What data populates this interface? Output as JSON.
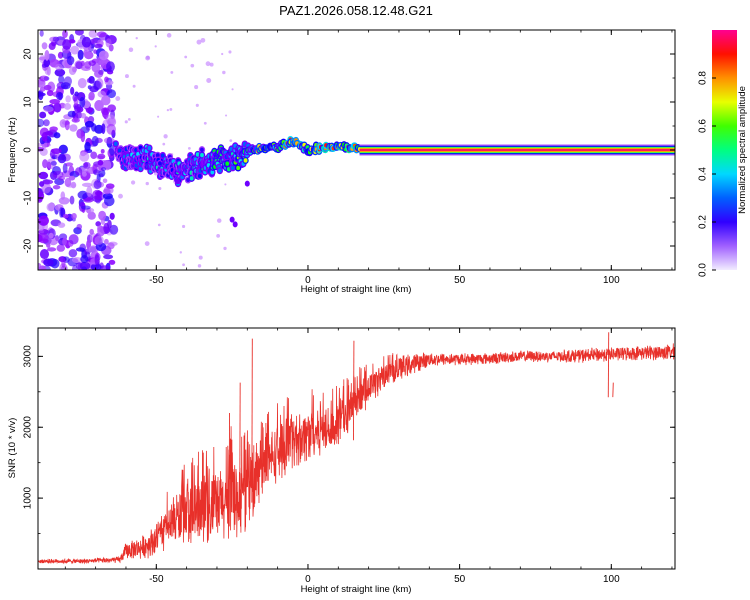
{
  "title": "PAZ1.2026.058.12.48.G21",
  "chart_data": [
    {
      "type": "heatmap",
      "xlabel": "Height of straight line (km)",
      "ylabel": "Frequency (Hz)",
      "xlim": [
        -89,
        121
      ],
      "ylim": [
        -25,
        25
      ],
      "xticks": [
        -50,
        0,
        50,
        100
      ],
      "yticks": [
        -20,
        -10,
        0,
        10,
        20
      ],
      "colorbar": {
        "label": "Normalized spectral amplitude",
        "range": [
          0,
          1
        ],
        "ticks": [
          0.0,
          0.2,
          0.4,
          0.6,
          0.8
        ],
        "colors": [
          "#f0e8ff",
          "#8a00ff",
          "#0000ff",
          "#00e0ff",
          "#00ff00",
          "#ffff00",
          "#ff8000",
          "#ff0000",
          "#ff0080"
        ]
      },
      "ridge": {
        "x": [
          -63,
          -58,
          -52,
          -47,
          -43,
          -40,
          -36,
          -32,
          -28,
          -24,
          -20,
          -16,
          -12,
          -8,
          -5,
          -2,
          0,
          3,
          6,
          10,
          14,
          18,
          40,
          80,
          121
        ],
        "frequency": [
          -1.5,
          -1.5,
          -2.0,
          -3.5,
          -4.5,
          -4.0,
          -3.0,
          -2.5,
          -1.5,
          -1.5,
          0.0,
          0.0,
          0.5,
          1.0,
          1.8,
          1.0,
          0.0,
          0.3,
          0.5,
          0.8,
          0.5,
          0.0,
          0.0,
          0.0,
          0.0
        ],
        "amplitude": [
          0.3,
          0.35,
          0.4,
          0.4,
          0.4,
          0.4,
          0.4,
          0.45,
          0.5,
          0.5,
          0.6,
          0.6,
          0.65,
          0.7,
          0.8,
          0.75,
          0.75,
          0.85,
          0.85,
          0.9,
          0.95,
          1.0,
          1.0,
          1.0,
          1.0
        ]
      },
      "noise_region": {
        "x_from": -89,
        "x_to": -64,
        "amplitude": 0.15
      }
    },
    {
      "type": "line",
      "xlabel": "Height of straight line (km)",
      "ylabel": "SNR (10 * v/v)",
      "xlim": [
        -89,
        121
      ],
      "ylim": [
        0,
        3400
      ],
      "xticks": [
        -50,
        0,
        50,
        100
      ],
      "yticks": [
        1000,
        2000,
        3000
      ],
      "color": "#e8302a",
      "envelope": {
        "x": [
          -89,
          -75,
          -62,
          -60,
          -55,
          -50,
          -45,
          -40,
          -35,
          -30,
          -25,
          -20,
          -15,
          -10,
          -5,
          0,
          5,
          10,
          15,
          20,
          25,
          30,
          35,
          40,
          50,
          60,
          70,
          80,
          90,
          100,
          110,
          121
        ],
        "mean": [
          110,
          110,
          130,
          260,
          300,
          420,
          640,
          820,
          820,
          870,
          1000,
          1050,
          1450,
          1650,
          1800,
          1900,
          1970,
          2050,
          2270,
          2550,
          2720,
          2830,
          2900,
          2960,
          2960,
          2970,
          3000,
          3000,
          3010,
          3030,
          3050,
          3060
        ],
        "spread": [
          35,
          35,
          50,
          130,
          170,
          260,
          380,
          480,
          540,
          560,
          650,
          600,
          450,
          450,
          420,
          420,
          390,
          360,
          320,
          260,
          210,
          190,
          160,
          110,
          90,
          90,
          90,
          90,
          110,
          110,
          110,
          130
        ]
      },
      "spikes": [
        {
          "x": -22.5,
          "y": 2630
        },
        {
          "x": -18.5,
          "y": 3250
        },
        {
          "x": -26,
          "y": 2200
        },
        {
          "x": 15,
          "y": 3220
        },
        {
          "x": 99,
          "y": 3340
        },
        {
          "x": 100.5,
          "y": 2630
        }
      ]
    }
  ]
}
